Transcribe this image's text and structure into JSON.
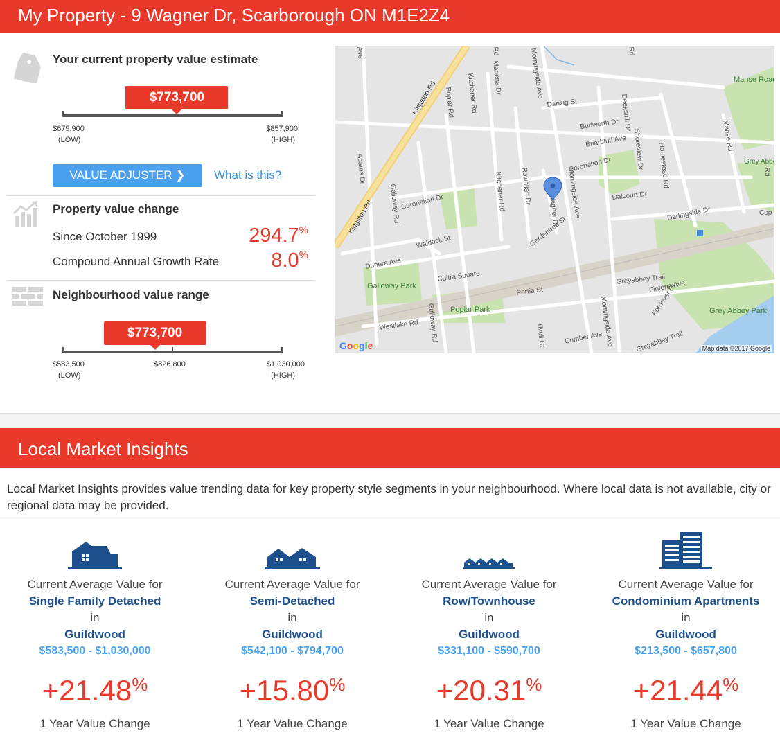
{
  "header": {
    "title": "My Property - 9 Wagner Dr, Scarborough ON M1E2Z4"
  },
  "estimate": {
    "title": "Your current property value estimate",
    "value": "$773,700",
    "low": "$679,900",
    "low_label": "(LOW)",
    "high": "$857,900",
    "high_label": "(HIGH)",
    "marker_fraction": 0.52
  },
  "actions": {
    "value_adjuster": "VALUE ADJUSTER ❯",
    "what_is_this": "What is this?"
  },
  "change": {
    "title": "Property value change",
    "since_label": "Since October 1999",
    "since_value": "294.7",
    "cagr_label": "Compound Annual Growth Rate",
    "cagr_value": "8.0",
    "pct_symbol": "%"
  },
  "neighbourhood": {
    "title": "Neighbourhood value range",
    "value": "$773,700",
    "low": "$583,500",
    "low_label": "(LOW)",
    "mid": "$826,800",
    "high": "$1,030,000",
    "high_label": "(HIGH)",
    "marker_fraction": 0.42
  },
  "map": {
    "credit": "Map data ©2017 Google",
    "google": "Google",
    "labels": {
      "kingston1": "Kingston Rd",
      "kingston2": "Kingston Rd",
      "morningside1": "Morningside Ave",
      "morningside2": "Morningside Ave",
      "morningside3": "Morningside Ave",
      "galloway1": "Galloway Rd",
      "galloway2": "Galloway Rd",
      "poplar": "Poplar Rd",
      "kitchener1": "Kitchener Rd",
      "kitchener2": "Kitchener Rd",
      "marlena": "Marlena Dr",
      "danzig": "Danzig St",
      "budworth": "Budworth Dr",
      "briarbluff": "Briarbluff Ave",
      "deekshill": "Deekshill Dr",
      "homestead": "Homestead Rd",
      "manse_rd": "Manse Rd",
      "manse_park": "Manse Road Park",
      "grey_abbey_ravine": "Grey Abbey Ravine",
      "coronation1": "Coronation Dr",
      "coronation2": "Coronation Dr",
      "shoreview": "Shoreview Dr",
      "dalcourt": "Dalcourt Dr",
      "darlingside": "Darlingside Dr",
      "adams": "Adams Dr",
      "rowallan": "Rowallan Dr",
      "wagner": "Wagner Dr",
      "gardentree": "Gardentree St",
      "waldock": "Waldock St",
      "dunera": "Dunera Ave",
      "cultra": "Cultra Square",
      "galloway_park": "Galloway Park",
      "poplar_park": "Poplar Park",
      "portia": "Portia St",
      "greyabbey_trail1": "Greyabbey Trail",
      "greyabbey_trail2": "Greyabbey Trail",
      "fintona": "Fintona Ave",
      "fordover": "Fordover Dr",
      "grey_abbey_park": "Grey Abbey Park",
      "westlake": "Westlake Rd",
      "tivoli": "Tivoli Ct",
      "cumber": "Cumber Ave",
      "edge1": "Ave",
      "edge2": "Rd",
      "edge3": "Rd",
      "edge4": "Rd",
      "edge5": "Cop"
    }
  },
  "market": {
    "title": "Local Market Insights",
    "intro": "Local Market Insights provides value trending data for key property style segments in your neighbourhood. Where local data is not available, city or regional data may be provided.",
    "cards": [
      {
        "line1": "Current Average Value for",
        "type": "Single Family Detached",
        "in": "in",
        "area": "Guildwood",
        "range": "$583,500 - $1,030,000",
        "pct": "+21.48",
        "pct_symbol": "%",
        "change_label": "1 Year Value Change"
      },
      {
        "line1": "Current Average Value for",
        "type": "Semi-Detached",
        "in": "in",
        "area": "Guildwood",
        "range": "$542,100 - $794,700",
        "pct": "+15.80",
        "pct_symbol": "%",
        "change_label": "1 Year Value Change"
      },
      {
        "line1": "Current Average Value for",
        "type": "Row/Townhouse",
        "in": "in",
        "area": "Guildwood",
        "range": "$331,100 - $590,700",
        "pct": "+20.31",
        "pct_symbol": "%",
        "change_label": "1 Year Value Change"
      },
      {
        "line1": "Current Average Value for",
        "type": "Condominium Apartments",
        "in": "in",
        "area": "Guildwood",
        "range": "$213,500 - $657,800",
        "pct": "+21.44",
        "pct_symbol": "%",
        "change_label": "1 Year Value Change"
      }
    ]
  },
  "colors": {
    "accent": "#e8392a",
    "link": "#3a8fd8",
    "button": "#4aa0ec",
    "navy": "#1d4f8c"
  }
}
